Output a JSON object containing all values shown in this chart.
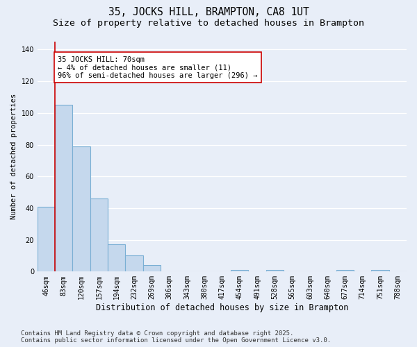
{
  "title": "35, JOCKS HILL, BRAMPTON, CA8 1UT",
  "subtitle": "Size of property relative to detached houses in Brampton",
  "xlabel": "Distribution of detached houses by size in Brampton",
  "ylabel": "Number of detached properties",
  "bar_values": [
    41,
    105,
    79,
    46,
    17,
    10,
    4,
    0,
    0,
    0,
    0,
    1,
    0,
    1,
    0,
    0,
    0,
    1,
    0,
    1,
    0
  ],
  "categories": [
    "46sqm",
    "83sqm",
    "120sqm",
    "157sqm",
    "194sqm",
    "232sqm",
    "269sqm",
    "306sqm",
    "343sqm",
    "380sqm",
    "417sqm",
    "454sqm",
    "491sqm",
    "528sqm",
    "565sqm",
    "603sqm",
    "640sqm",
    "677sqm",
    "714sqm",
    "751sqm",
    "788sqm"
  ],
  "bar_color": "#c5d8ed",
  "bar_edge_color": "#7aafd4",
  "bg_color": "#e8eef8",
  "grid_color": "#ffffff",
  "vline_color": "#cc0000",
  "annotation_title": "35 JOCKS HILL: 70sqm",
  "annotation_line1": "← 4% of detached houses are smaller (11)",
  "annotation_line2": "96% of semi-detached houses are larger (296) →",
  "annotation_box_color": "#ffffff",
  "annotation_edge_color": "#cc0000",
  "ylim": [
    0,
    145
  ],
  "yticks": [
    0,
    20,
    40,
    60,
    80,
    100,
    120,
    140
  ],
  "title_fontsize": 10.5,
  "subtitle_fontsize": 9.5,
  "xlabel_fontsize": 8.5,
  "ylabel_fontsize": 7.5,
  "tick_fontsize": 7,
  "annotation_fontsize": 7.5,
  "footnote_fontsize": 6.5,
  "footnote1": "Contains HM Land Registry data © Crown copyright and database right 2025.",
  "footnote2": "Contains public sector information licensed under the Open Government Licence v3.0."
}
